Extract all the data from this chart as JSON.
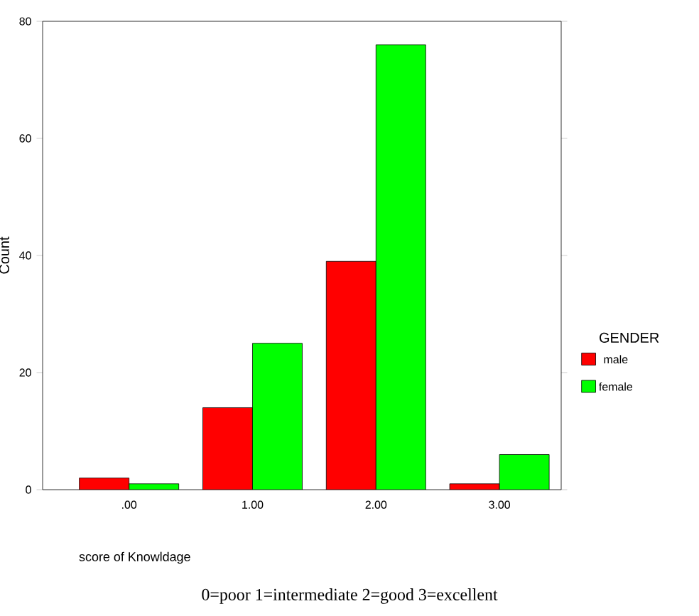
{
  "chart_data": {
    "type": "bar",
    "xlabel": "score of Knowldage",
    "ylabel": "Count",
    "legend_title": "GENDER",
    "legend": "right",
    "annotations": [
      "0=poor 1=intermediate 2=good 3=excellent"
    ],
    "categories": [
      ".00",
      "1.00",
      "2.00",
      "3.00"
    ],
    "series": [
      {
        "name": "male",
        "color": "#ff0000",
        "values": [
          2,
          14,
          39,
          1
        ]
      },
      {
        "name": "female",
        "color": "#00ff00",
        "values": [
          1,
          25,
          76,
          6
        ]
      }
    ],
    "ylim": [
      0,
      80
    ],
    "yticks": [
      0,
      20,
      40,
      60,
      80
    ]
  }
}
